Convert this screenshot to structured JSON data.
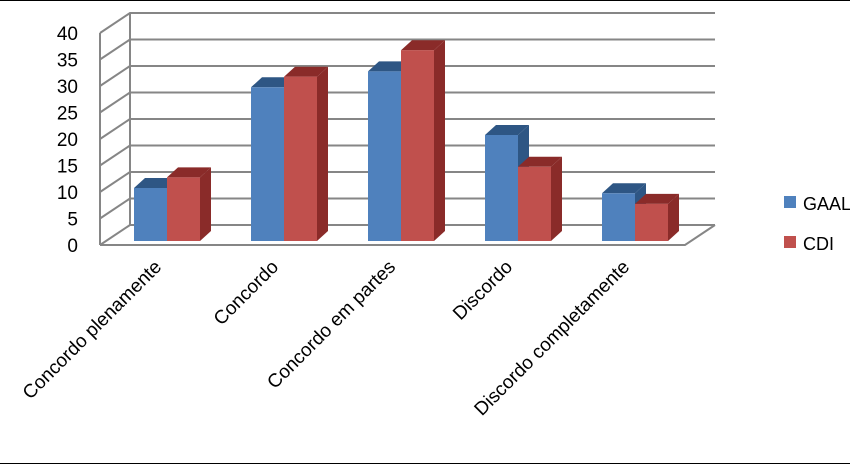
{
  "chart_data": {
    "type": "bar",
    "style": "3d-clustered-column",
    "categories": [
      "Concordo plenamente",
      "Concordo",
      "Concordo em partes",
      "Discordo",
      "Discordo completamente"
    ],
    "series": [
      {
        "name": "GAAL",
        "values": [
          10,
          29,
          32,
          20,
          9
        ],
        "color": "#4F81BD",
        "shade": "#2E5684"
      },
      {
        "name": "CDI",
        "values": [
          12,
          31,
          36,
          14,
          7
        ],
        "color": "#C0504D",
        "shade": "#8A2B29"
      }
    ],
    "ylim": [
      0,
      40
    ],
    "yticks": [
      0,
      5,
      10,
      15,
      20,
      25,
      30,
      35,
      40
    ],
    "grid": true,
    "legend_position": "right",
    "title": "",
    "xlabel": "",
    "ylabel": ""
  }
}
